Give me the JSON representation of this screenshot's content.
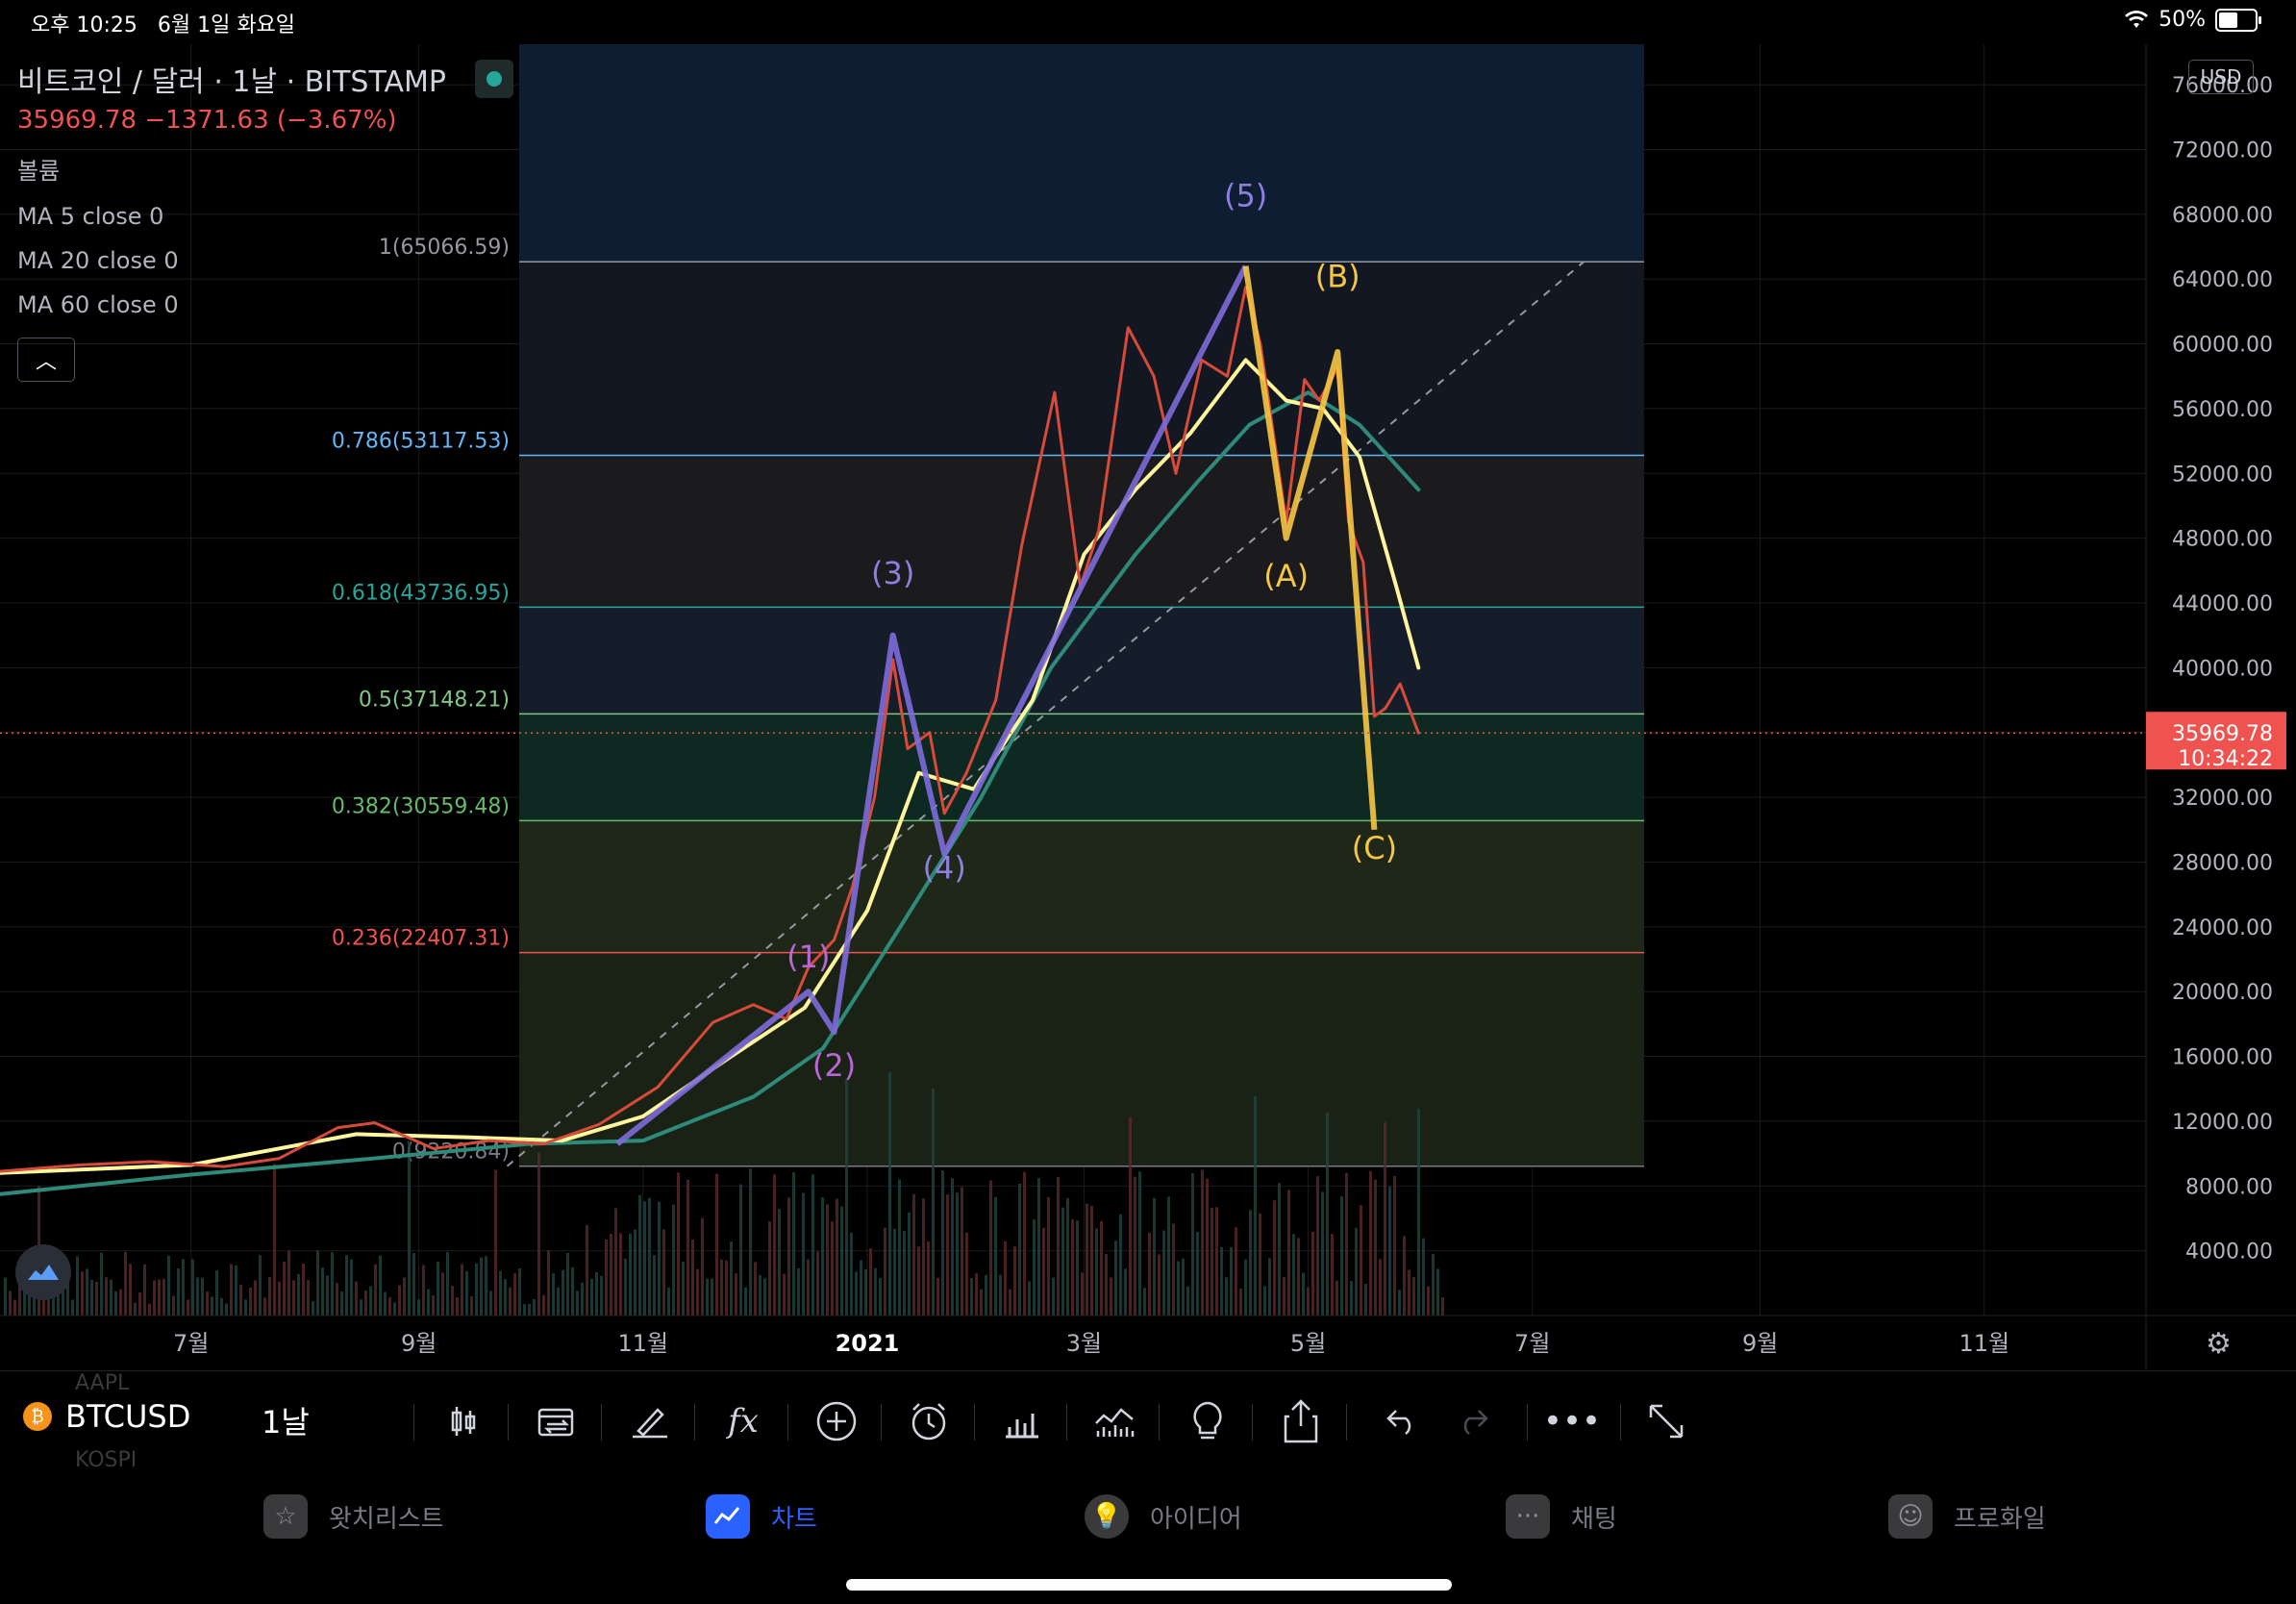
{
  "status_bar": {
    "time": "오후 10:25",
    "date": "6월 1일 화요일",
    "battery": "50%"
  },
  "legend": {
    "title": "비트코인 / 달러 · 1날 · BITSTAMP",
    "price_line": "35969.78  −1371.63 (−3.67%)",
    "volume": "볼륨",
    "ma5": "MA 5 close 0",
    "ma20": "MA 20 close 0",
    "ma60": "MA 60 close 0"
  },
  "currency_button": "USD",
  "last_price": {
    "price": "35969.78",
    "countdown": "10:34:22",
    "color": "#ef5350"
  },
  "fib_levels": [
    {
      "label": "1(65066.59)",
      "value": 65066.59,
      "color": "#9598a1",
      "fill": "#131722"
    },
    {
      "label": "0.786(53117.53)",
      "value": 53117.53,
      "color": "#64b5f6",
      "fill": "#1b1b1d"
    },
    {
      "label": "0.618(43736.95)",
      "value": 43736.95,
      "color": "#26a69a",
      "fill": "#151d2b"
    },
    {
      "label": "0.5(37148.21)",
      "value": 37148.21,
      "color": "#81c784",
      "fill": "#0e2822"
    },
    {
      "label": "0.382(30559.48)",
      "value": 30559.48,
      "color": "#66bb6a",
      "fill": "#1f2818"
    },
    {
      "label": "0.236(22407.31)",
      "value": 22407.31,
      "color": "#ef5350",
      "fill": "#192214"
    },
    {
      "label": "0(9220.84)",
      "value": 9220.84,
      "color": "#787b86",
      "fill": "#2a1111"
    }
  ],
  "top_zone_fill": "#0f1d33",
  "wave_labels": [
    {
      "text": "(1)",
      "date": "2020-12-16",
      "price": 21500,
      "color": "#b667d4"
    },
    {
      "text": "(2)",
      "date": "2020-12-23",
      "price": 14800,
      "color": "#b667d4"
    },
    {
      "text": "(3)",
      "date": "2021-01-08",
      "price": 45200,
      "color": "#8c7fe0"
    },
    {
      "text": "(4)",
      "date": "2021-01-22",
      "price": 27000,
      "color": "#8c7fe0"
    },
    {
      "text": "(5)",
      "date": "2021-04-14",
      "price": 68500,
      "color": "#8c7fe0"
    },
    {
      "text": "(A)",
      "date": "2021-04-25",
      "price": 45000,
      "color": "#f7c744"
    },
    {
      "text": "(B)",
      "date": "2021-05-09",
      "price": 63500,
      "color": "#f7c744"
    },
    {
      "text": "(C)",
      "date": "2021-05-19",
      "price": 28200,
      "color": "#f7c744"
    }
  ],
  "chart_data": {
    "type": "candlestick",
    "symbol": "BTCUSD",
    "interval": "1날",
    "ylim": [
      0,
      78500
    ],
    "x_range": [
      "2020-05-10",
      "2021-12-15"
    ],
    "y_ticks": [
      "76000.00",
      "72000.00",
      "68000.00",
      "64000.00",
      "60000.00",
      "56000.00",
      "52000.00",
      "48000.00",
      "44000.00",
      "40000.00",
      "36000.00",
      "32000.00",
      "28000.00",
      "24000.00",
      "20000.00",
      "16000.00",
      "12000.00",
      "8000.00",
      "4000.00"
    ],
    "x_ticks": [
      {
        "label": "7월",
        "date": "2020-07-01"
      },
      {
        "label": "9월",
        "date": "2020-09-01"
      },
      {
        "label": "11월",
        "date": "2020-11-01"
      },
      {
        "label": "2021",
        "date": "2021-01-01"
      },
      {
        "label": "3월",
        "date": "2021-03-01"
      },
      {
        "label": "5월",
        "date": "2021-05-01"
      },
      {
        "label": "7월",
        "date": "2021-07-01"
      },
      {
        "label": "9월",
        "date": "2021-09-01"
      },
      {
        "label": "11월",
        "date": "2021-11-01"
      }
    ],
    "price_series": {
      "dates": [
        "2020-05-10",
        "2020-06-01",
        "2020-06-20",
        "2020-07-10",
        "2020-07-25",
        "2020-08-10",
        "2020-08-20",
        "2020-09-05",
        "2020-09-20",
        "2020-10-05",
        "2020-10-20",
        "2020-11-05",
        "2020-11-20",
        "2020-12-01",
        "2020-12-10",
        "2020-12-16",
        "2020-12-23",
        "2020-12-28",
        "2021-01-03",
        "2021-01-08",
        "2021-01-12",
        "2021-01-18",
        "2021-01-22",
        "2021-01-28",
        "2021-02-05",
        "2021-02-12",
        "2021-02-21",
        "2021-02-28",
        "2021-03-05",
        "2021-03-13",
        "2021-03-20",
        "2021-03-26",
        "2021-04-02",
        "2021-04-09",
        "2021-04-14",
        "2021-04-18",
        "2021-04-25",
        "2021-04-30",
        "2021-05-04",
        "2021-05-09",
        "2021-05-12",
        "2021-05-16",
        "2021-05-19",
        "2021-05-22",
        "2021-05-26",
        "2021-05-31"
      ],
      "close": [
        8900,
        9300,
        9500,
        9200,
        9700,
        11600,
        11900,
        10300,
        10800,
        10600,
        11800,
        14100,
        18100,
        19200,
        18300,
        21500,
        23200,
        26500,
        32000,
        40500,
        35000,
        36000,
        31000,
        33500,
        38000,
        47500,
        57000,
        45000,
        48500,
        61000,
        58000,
        52000,
        59000,
        58000,
        63500,
        60000,
        49000,
        57800,
        56500,
        58500,
        49000,
        46500,
        37000,
        37500,
        39000,
        35969.78
      ]
    },
    "ma20": {
      "dates": [
        "2020-05-10",
        "2020-07-01",
        "2020-08-15",
        "2020-09-15",
        "2020-10-10",
        "2020-11-01",
        "2020-11-25",
        "2020-12-15",
        "2021-01-01",
        "2021-01-15",
        "2021-01-30",
        "2021-02-15",
        "2021-03-01",
        "2021-03-15",
        "2021-03-30",
        "2021-04-14",
        "2021-04-25",
        "2021-05-05",
        "2021-05-15",
        "2021-05-25",
        "2021-05-31"
      ],
      "values": [
        8800,
        9300,
        11200,
        11000,
        10800,
        12300,
        16000,
        19000,
        25000,
        33500,
        32500,
        38000,
        47000,
        51000,
        54500,
        59000,
        56500,
        56000,
        53000,
        45000,
        40000
      ]
    },
    "ma60": {
      "dates": [
        "2020-05-10",
        "2020-07-01",
        "2020-08-15",
        "2020-10-01",
        "2020-11-01",
        "2020-12-01",
        "2020-12-20",
        "2021-01-10",
        "2021-02-01",
        "2021-02-20",
        "2021-03-15",
        "2021-04-01",
        "2021-04-15",
        "2021-05-01",
        "2021-05-15",
        "2021-05-31"
      ],
      "values": [
        7500,
        8700,
        9600,
        10600,
        10800,
        13500,
        16500,
        24000,
        32000,
        40000,
        47000,
        51500,
        55000,
        57000,
        55000,
        51000
      ]
    },
    "wave_lines": [
      {
        "name": "impulse",
        "color": "#7e6cd9",
        "points": [
          [
            "2020-10-25",
            10600
          ],
          [
            "2020-12-16",
            20000
          ],
          [
            "2020-12-23",
            17500
          ],
          [
            "2021-01-08",
            42000
          ],
          [
            "2021-01-22",
            28500
          ],
          [
            "2021-04-14",
            64800
          ]
        ]
      },
      {
        "name": "correction",
        "color": "#f7c744",
        "points": [
          [
            "2021-04-14",
            64800
          ],
          [
            "2021-04-25",
            48000
          ],
          [
            "2021-05-09",
            59500
          ],
          [
            "2021-05-19",
            30000
          ]
        ]
      }
    ],
    "trend_line": {
      "points": [
        [
          "2020-09-25",
          9220.84
        ],
        [
          "2021-07-15",
          65066.59
        ]
      ],
      "color": "#9598a1"
    }
  },
  "toolbar": {
    "symbol": "BTCUSD",
    "interval": "1날",
    "ghost_top": "AAPL",
    "ghost_bottom": "KOSPI",
    "tools": [
      "candle-type-icon",
      "compare-icon",
      "drawing-icon",
      "indicators-icon",
      "add-icon",
      "alert-icon",
      "bar-chart-icon",
      "volume-icon",
      "idea-icon",
      "share-icon",
      "undo-icon",
      "redo-icon",
      "more-icon",
      "fullscreen-icon"
    ]
  },
  "tabs": [
    {
      "label": "왓치리스트",
      "icon": "star-icon"
    },
    {
      "label": "차트",
      "icon": "chart-icon"
    },
    {
      "label": "아이디어",
      "icon": "bulb-icon"
    },
    {
      "label": "채팅",
      "icon": "chat-icon"
    },
    {
      "label": "프로화일",
      "icon": "smile-icon"
    }
  ]
}
